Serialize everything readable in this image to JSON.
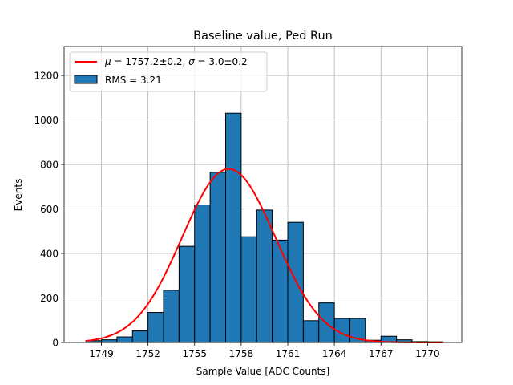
{
  "chart_data": {
    "type": "bar",
    "title": "Baseline value, Ped Run",
    "xlabel": "Sample Value [ADC Counts]",
    "ylabel": "Events",
    "xlim": [
      1746.6,
      1772.2
    ],
    "ylim": [
      0,
      1330
    ],
    "grid": true,
    "legend_position": "upper-left",
    "xticks": [
      1749,
      1752,
      1755,
      1758,
      1761,
      1764,
      1767,
      1770
    ],
    "yticks": [
      0,
      200,
      400,
      600,
      800,
      1000,
      1200
    ],
    "bin_width": 1,
    "bins": [
      {
        "left": 1748,
        "right": 1749,
        "count": 8
      },
      {
        "left": 1749,
        "right": 1750,
        "count": 12
      },
      {
        "left": 1750,
        "right": 1751,
        "count": 25
      },
      {
        "left": 1751,
        "right": 1752,
        "count": 52
      },
      {
        "left": 1752,
        "right": 1753,
        "count": 135
      },
      {
        "left": 1753,
        "right": 1754,
        "count": 235
      },
      {
        "left": 1754,
        "right": 1755,
        "count": 432
      },
      {
        "left": 1755,
        "right": 1756,
        "count": 618
      },
      {
        "left": 1756,
        "right": 1757,
        "count": 765
      },
      {
        "left": 1757,
        "right": 1758,
        "count": 1030
      },
      {
        "left": 1758,
        "right": 1759,
        "count": 475
      },
      {
        "left": 1759,
        "right": 1760,
        "count": 595
      },
      {
        "left": 1760,
        "right": 1761,
        "count": 460
      },
      {
        "left": 1761,
        "right": 1762,
        "count": 540
      },
      {
        "left": 1762,
        "right": 1763,
        "count": 98
      },
      {
        "left": 1763,
        "right": 1764,
        "count": 178
      },
      {
        "left": 1764,
        "right": 1765,
        "count": 108
      },
      {
        "left": 1765,
        "right": 1766,
        "count": 108
      },
      {
        "left": 1766,
        "right": 1767,
        "count": 10
      },
      {
        "left": 1767,
        "right": 1768,
        "count": 28
      },
      {
        "left": 1768,
        "right": 1769,
        "count": 12
      },
      {
        "left": 1769,
        "right": 1770,
        "count": 4
      },
      {
        "left": 1770,
        "right": 1771,
        "count": 3
      }
    ],
    "fit": {
      "mu": 1757.2,
      "sigma": 3.0,
      "amplitude": 780,
      "x_range": [
        1748,
        1771
      ]
    },
    "legend": {
      "fit_prefix_mu": "μ",
      "fit_text_1": " = 1757.2±0.2, ",
      "fit_prefix_sigma": "σ",
      "fit_text_2": " = 3.0±0.2",
      "hist_label": "RMS = 3.21"
    },
    "colors": {
      "bar_fill": "#1f77b4",
      "bar_edge": "#000000",
      "fit_line": "#ff0000",
      "grid": "#b0b0b0"
    }
  }
}
